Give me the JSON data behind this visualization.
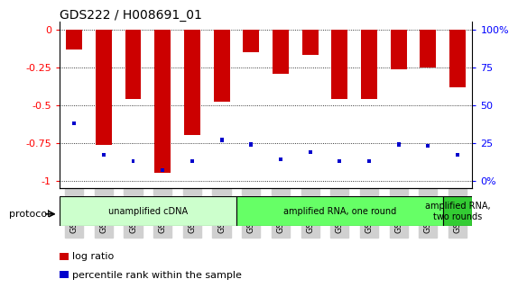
{
  "title": "GDS222 / H008691_01",
  "samples": [
    "GSM4848",
    "GSM4849",
    "GSM4850",
    "GSM4851",
    "GSM4852",
    "GSM4853",
    "GSM4854",
    "GSM4855",
    "GSM4856",
    "GSM4857",
    "GSM4858",
    "GSM4859",
    "GSM4860",
    "GSM4861"
  ],
  "log_ratio": [
    -0.13,
    -0.76,
    -0.46,
    -0.95,
    -0.7,
    -0.48,
    -0.15,
    -0.29,
    -0.17,
    -0.46,
    -0.46,
    -0.26,
    -0.25,
    -0.38
  ],
  "percentile_left": [
    -0.62,
    -0.83,
    -0.87,
    -0.93,
    -0.87,
    -0.73,
    -0.76,
    -0.86,
    -0.81,
    -0.87,
    -0.87,
    -0.76,
    -0.77,
    -0.83
  ],
  "protocol_groups": [
    {
      "label": "unamplified cDNA",
      "start": 0,
      "end": 6,
      "color": "#ccffcc"
    },
    {
      "label": "amplified RNA, one round",
      "start": 6,
      "end": 13,
      "color": "#66ff66"
    },
    {
      "label": "amplified RNA,\ntwo rounds",
      "start": 13,
      "end": 14,
      "color": "#33cc33"
    }
  ],
  "bar_color_red": "#cc0000",
  "bar_color_blue": "#0000cc",
  "ylim_left": [
    -1.05,
    0.05
  ],
  "yticks_left": [
    0,
    -0.25,
    -0.5,
    -0.75,
    -1.0
  ],
  "ytick_labels_left": [
    "0",
    "-0.25",
    "-0.5",
    "-0.75",
    "-1"
  ],
  "ytick_labels_right": [
    "100%",
    "75",
    "50",
    "25",
    "0%"
  ],
  "legend_log_ratio": "log ratio",
  "legend_percentile": "percentile rank within the sample",
  "protocol_label": "protocol",
  "background_color": "#ffffff"
}
